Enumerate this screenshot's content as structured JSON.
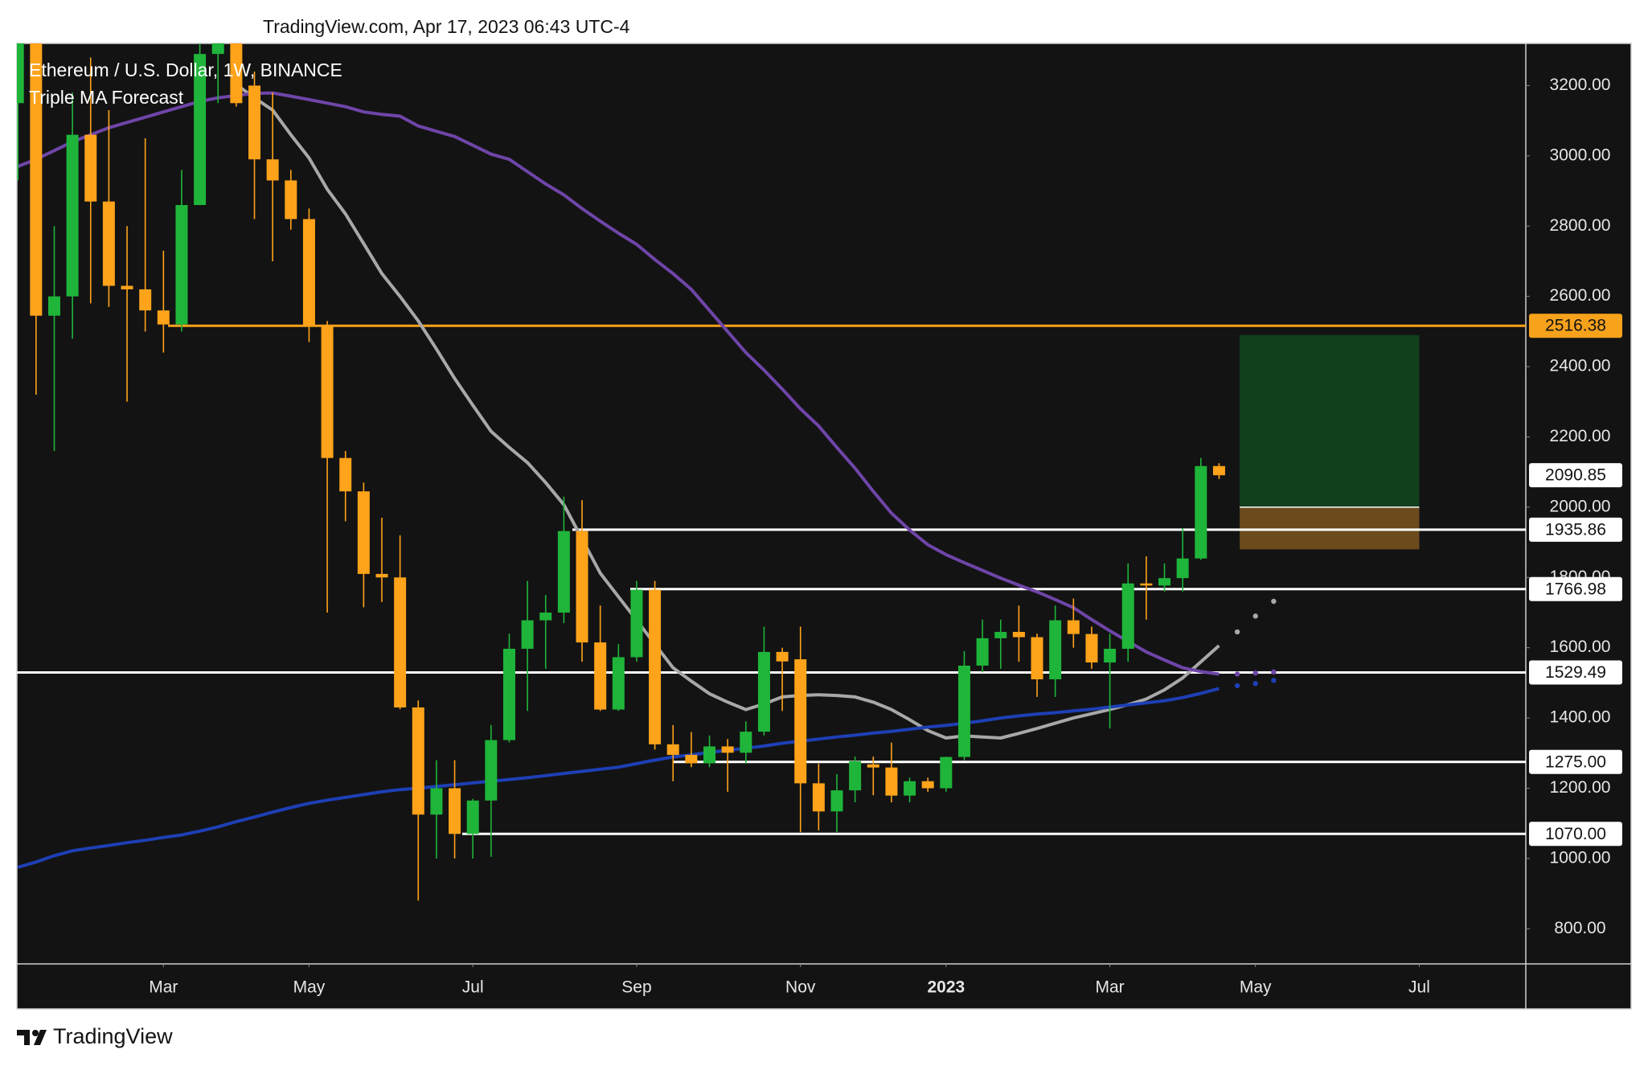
{
  "chart_data": {
    "type": "candlestick",
    "source": "TradingView.com, Apr 17, 2023 06:43 UTC-4",
    "title": "Ethereum / U.S. Dollar, 1W, BINANCE",
    "indicator": "Triple MA Forecast",
    "brand": "TradingView",
    "up_color": "#1fb53a",
    "down_color": "#ffa31a",
    "open": [
      3150,
      3330,
      2545,
      2600,
      3060,
      2870,
      2630,
      2620,
      2560,
      2520,
      2860,
      3290,
      3400,
      3200,
      2990,
      2930,
      2820,
      2515,
      2140,
      2045,
      1810,
      1800,
      1430,
      1125,
      1200,
      1070,
      1165,
      1337,
      1597,
      1678,
      1700,
      1932,
      1615,
      1424,
      1573,
      1765,
      1325,
      1295,
      1271,
      1319,
      1301,
      1361,
      1588,
      1567,
      1214,
      1134,
      1194,
      1268,
      1259,
      1179,
      1220,
      1200,
      1289,
      1549,
      1627,
      1645,
      1630,
      1510,
      1678,
      1639,
      1558,
      1597,
      1783,
      1777,
      1798,
      1854,
      2117
    ],
    "high": [
      3410,
      3360,
      2800,
      3180,
      3280,
      3130,
      2800,
      3050,
      2730,
      2960,
      3480,
      3480,
      3580,
      3240,
      3180,
      2960,
      2850,
      2530,
      2160,
      2070,
      1970,
      1920,
      1450,
      1280,
      1280,
      1170,
      1380,
      1640,
      1790,
      1750,
      2030,
      2020,
      1720,
      1610,
      1790,
      1790,
      1380,
      1360,
      1350,
      1340,
      1390,
      1660,
      1600,
      1660,
      1270,
      1240,
      1290,
      1290,
      1330,
      1230,
      1230,
      1290,
      1590,
      1680,
      1680,
      1720,
      1640,
      1720,
      1740,
      1660,
      1640,
      1840,
      1860,
      1840,
      1940,
      2140,
      2125
    ],
    "low": [
      2930,
      2320,
      2160,
      2480,
      2580,
      2570,
      2300,
      2500,
      2440,
      2500,
      2860,
      3150,
      3140,
      2820,
      2700,
      2790,
      2470,
      1700,
      1960,
      1715,
      1730,
      1425,
      880,
      1000,
      1000,
      1000,
      1005,
      1330,
      1420,
      1540,
      1670,
      1560,
      1420,
      1420,
      1560,
      1310,
      1220,
      1260,
      1260,
      1190,
      1270,
      1350,
      1420,
      1075,
      1080,
      1075,
      1160,
      1180,
      1160,
      1160,
      1190,
      1190,
      1280,
      1530,
      1540,
      1560,
      1460,
      1460,
      1600,
      1540,
      1370,
      1560,
      1680,
      1760,
      1760,
      1850,
      2080
    ],
    "close": [
      3330,
      2545,
      2600,
      3060,
      2870,
      2630,
      2620,
      2560,
      2520,
      2860,
      3290,
      3400,
      3150,
      2990,
      2930,
      2820,
      2515,
      2140,
      2045,
      1810,
      1800,
      1430,
      1125,
      1200,
      1070,
      1165,
      1337,
      1597,
      1678,
      1700,
      1932,
      1615,
      1424,
      1573,
      1765,
      1325,
      1295,
      1271,
      1319,
      1301,
      1361,
      1588,
      1561,
      1214,
      1134,
      1194,
      1277,
      1259,
      1179,
      1220,
      1200,
      1289,
      1549,
      1627,
      1645,
      1630,
      1510,
      1678,
      1639,
      1558,
      1597,
      1783,
      1777,
      1798,
      1854,
      2117,
      2090.85
    ],
    "series": [
      {
        "color": "#a8a8a8",
        "values": [
          null,
          null,
          null,
          null,
          null,
          null,
          null,
          null,
          null,
          null,
          null,
          null,
          3203,
          3165,
          3130,
          3060,
          2994,
          2905,
          2835,
          2750,
          2665,
          2600,
          2530,
          2450,
          2366,
          2290,
          2216,
          2170,
          2127,
          2070,
          2007,
          1910,
          1812,
          1745,
          1678,
          1610,
          1543,
          1505,
          1469,
          1445,
          1424,
          1440,
          1460,
          1464,
          1466,
          1464,
          1460,
          1445,
          1424,
          1395,
          1364,
          1343,
          1349,
          1346,
          1343,
          1356,
          1370,
          1385,
          1400,
          1412,
          1424,
          1438,
          1454,
          1480,
          1514,
          1560,
          1606
        ],
        "forecast": [
          1645,
          1690,
          1732
        ]
      },
      {
        "color": "#6f45a8",
        "values": [
          2970,
          2990,
          3015,
          3040,
          3060,
          3080,
          3095,
          3110,
          3125,
          3140,
          3155,
          3165,
          3172,
          3178,
          3179,
          3170,
          3160,
          3150,
          3140,
          3125,
          3118,
          3113,
          3085,
          3070,
          3055,
          3030,
          3005,
          2990,
          2955,
          2920,
          2889,
          2850,
          2814,
          2780,
          2748,
          2705,
          2665,
          2620,
          2560,
          2500,
          2440,
          2390,
          2336,
          2280,
          2231,
          2170,
          2111,
          2045,
          1983,
          1935,
          1893,
          1865,
          1842,
          1820,
          1798,
          1778,
          1759,
          1737,
          1714,
          1680,
          1648,
          1618,
          1588,
          1565,
          1543,
          1532,
          1525
        ],
        "forecast": [
          1525,
          1528,
          1531
        ]
      },
      {
        "color": "#1e3fb5",
        "values": [
          975,
          990,
          1008,
          1022,
          1030,
          1037,
          1045,
          1052,
          1060,
          1067,
          1078,
          1090,
          1105,
          1118,
          1132,
          1145,
          1157,
          1166,
          1174,
          1182,
          1190,
          1196,
          1200,
          1205,
          1210,
          1215,
          1220,
          1225,
          1230,
          1236,
          1242,
          1248,
          1254,
          1260,
          1270,
          1280,
          1289,
          1295,
          1302,
          1308,
          1314,
          1320,
          1328,
          1334,
          1340,
          1346,
          1351,
          1357,
          1362,
          1368,
          1374,
          1379,
          1385,
          1392,
          1400,
          1406,
          1411,
          1415,
          1420,
          1425,
          1431,
          1437,
          1443,
          1449,
          1458,
          1470,
          1484
        ],
        "forecast": [
          1492,
          1498,
          1507
        ]
      }
    ],
    "levels": [
      {
        "value": 2516.38,
        "color": "#f7a21b"
      },
      {
        "value": 1935.86,
        "color": "#ffffff"
      },
      {
        "value": 1766.98,
        "color": "#ffffff"
      },
      {
        "value": 1529.49,
        "color": "#ffffff"
      },
      {
        "value": 1275,
        "label": "1275.00",
        "color": "#ffffff"
      },
      {
        "value": 1070,
        "label": "1070.00",
        "color": "#ffffff"
      }
    ],
    "position": {
      "target": 2490,
      "entry": 2000,
      "stop": 1880
    },
    "ylim": [
      700,
      3320
    ],
    "yticks": [
      {
        "value": 800,
        "label": "800.00"
      },
      {
        "value": 1000,
        "label": "1000.00"
      },
      {
        "value": 1200,
        "label": "1200.00"
      },
      {
        "value": 1400,
        "label": "1400.00"
      },
      {
        "value": 1600,
        "label": "1600.00"
      },
      {
        "value": 1800,
        "label": "1800.00"
      },
      {
        "value": 2000,
        "label": "2000.00"
      },
      {
        "value": 2200,
        "label": "2200.00"
      },
      {
        "value": 2400,
        "label": "2400.00"
      },
      {
        "value": 2600,
        "label": "2600.00"
      },
      {
        "value": 2800,
        "label": "2800.00"
      },
      {
        "value": 3000,
        "label": "3000.00"
      },
      {
        "value": 3200,
        "label": "3200.00"
      }
    ],
    "xticks": [
      {
        "value": 8,
        "label": "Mar"
      },
      {
        "value": 16,
        "label": "May"
      },
      {
        "value": 25,
        "label": "Jul"
      },
      {
        "value": 34,
        "label": "Sep"
      },
      {
        "value": 43,
        "label": "Nov"
      },
      {
        "value": 51,
        "label": "2023"
      },
      {
        "value": 60,
        "label": "Mar"
      },
      {
        "value": 68,
        "label": "May"
      },
      {
        "value": 77,
        "label": "Jul"
      }
    ]
  }
}
